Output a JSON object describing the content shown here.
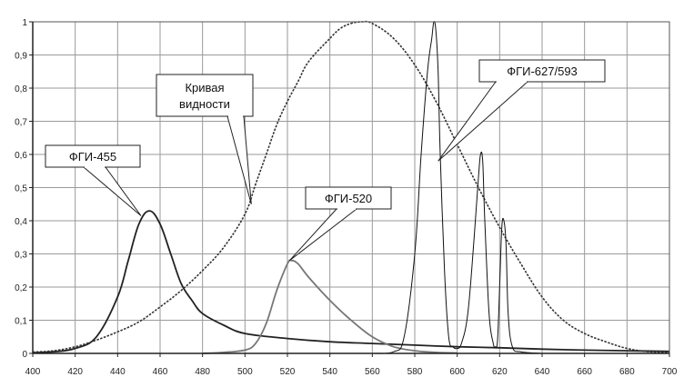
{
  "chart_data": {
    "type": "line",
    "title": "",
    "xlabel": "",
    "ylabel": "",
    "xlim": [
      400,
      700
    ],
    "ylim": [
      0,
      1
    ],
    "grid": true,
    "x_ticks": [
      400,
      420,
      440,
      460,
      480,
      500,
      520,
      540,
      560,
      580,
      600,
      620,
      640,
      660,
      680,
      700
    ],
    "y_ticks": [
      0,
      0.1,
      0.2,
      0.3,
      0.4,
      0.5,
      0.6,
      0.7,
      0.8,
      0.9,
      1
    ],
    "x_tick_labels": [
      "400",
      "420",
      "440",
      "460",
      "480",
      "500",
      "520",
      "540",
      "560",
      "580",
      "600",
      "620",
      "640",
      "660",
      "680",
      "700"
    ],
    "y_tick_labels": [
      "0",
      "0,1",
      "0,2",
      "0,3",
      "0,4",
      "0,5",
      "0,6",
      "0,7",
      "0,8",
      "0,9",
      "1"
    ],
    "series": [
      {
        "key": "fgi455",
        "label": "ФГИ-455",
        "color": "#222222",
        "points": [
          [
            400,
            0.002
          ],
          [
            410,
            0.005
          ],
          [
            420,
            0.015
          ],
          [
            430,
            0.05
          ],
          [
            440,
            0.17
          ],
          [
            445,
            0.28
          ],
          [
            450,
            0.39
          ],
          [
            455,
            0.43
          ],
          [
            460,
            0.39
          ],
          [
            465,
            0.3
          ],
          [
            470,
            0.21
          ],
          [
            475,
            0.16
          ],
          [
            480,
            0.12
          ],
          [
            490,
            0.085
          ],
          [
            500,
            0.06
          ],
          [
            520,
            0.045
          ],
          [
            540,
            0.035
          ],
          [
            560,
            0.03
          ],
          [
            580,
            0.025
          ],
          [
            600,
            0.02
          ],
          [
            620,
            0.017
          ],
          [
            640,
            0.013
          ],
          [
            660,
            0.01
          ],
          [
            680,
            0.008
          ],
          [
            700,
            0.006
          ]
        ]
      },
      {
        "key": "vis",
        "label": "Кривая видности",
        "color": "#333333",
        "dashed": true,
        "points": [
          [
            400,
            0.004
          ],
          [
            410,
            0.008
          ],
          [
            420,
            0.02
          ],
          [
            430,
            0.04
          ],
          [
            440,
            0.065
          ],
          [
            450,
            0.095
          ],
          [
            460,
            0.14
          ],
          [
            470,
            0.19
          ],
          [
            480,
            0.25
          ],
          [
            490,
            0.32
          ],
          [
            500,
            0.42
          ],
          [
            505,
            0.51
          ],
          [
            510,
            0.6
          ],
          [
            515,
            0.69
          ],
          [
            520,
            0.76
          ],
          [
            525,
            0.82
          ],
          [
            530,
            0.88
          ],
          [
            540,
            0.95
          ],
          [
            545,
            0.98
          ],
          [
            550,
            0.995
          ],
          [
            555,
            1.0
          ],
          [
            560,
            0.995
          ],
          [
            570,
            0.95
          ],
          [
            580,
            0.87
          ],
          [
            590,
            0.76
          ],
          [
            600,
            0.63
          ],
          [
            610,
            0.5
          ],
          [
            620,
            0.38
          ],
          [
            630,
            0.27
          ],
          [
            640,
            0.17
          ],
          [
            650,
            0.1
          ],
          [
            660,
            0.06
          ],
          [
            670,
            0.035
          ],
          [
            680,
            0.015
          ],
          [
            690,
            0.005
          ],
          [
            700,
            0.002
          ]
        ]
      },
      {
        "key": "fgi520",
        "label": "ФГИ-520",
        "color": "#777777",
        "points": [
          [
            480,
            0
          ],
          [
            490,
            0.003
          ],
          [
            500,
            0.01
          ],
          [
            505,
            0.03
          ],
          [
            510,
            0.09
          ],
          [
            515,
            0.19
          ],
          [
            520,
            0.27
          ],
          [
            522,
            0.28
          ],
          [
            525,
            0.27
          ],
          [
            530,
            0.23
          ],
          [
            540,
            0.16
          ],
          [
            550,
            0.1
          ],
          [
            560,
            0.05
          ],
          [
            570,
            0.02
          ],
          [
            580,
            0.008
          ],
          [
            590,
            0.003
          ],
          [
            600,
            0.001
          ]
        ]
      },
      {
        "key": "fgi627",
        "label": "ФГИ-627/593",
        "color": "#111111",
        "points": [
          [
            560,
            0
          ],
          [
            570,
            0.005
          ],
          [
            575,
            0.05
          ],
          [
            580,
            0.3
          ],
          [
            583,
            0.6
          ],
          [
            586,
            0.85
          ],
          [
            588,
            0.95
          ],
          [
            589,
            1.0
          ],
          [
            590,
            0.97
          ],
          [
            591,
            0.85
          ],
          [
            592,
            0.6
          ],
          [
            594,
            0.25
          ],
          [
            596,
            0.05
          ],
          [
            598,
            0.02
          ],
          [
            600,
            0.015
          ],
          [
            602,
            0.03
          ],
          [
            605,
            0.12
          ],
          [
            608,
            0.35
          ],
          [
            610,
            0.53
          ],
          [
            611,
            0.6
          ],
          [
            612,
            0.58
          ],
          [
            613,
            0.4
          ],
          [
            615,
            0.12
          ],
          [
            617,
            0.03
          ],
          [
            618,
            0.02
          ],
          [
            619,
            0.04
          ],
          [
            620,
            0.2
          ],
          [
            621,
            0.38
          ],
          [
            622,
            0.4
          ],
          [
            623,
            0.33
          ],
          [
            624,
            0.12
          ],
          [
            626,
            0.02
          ],
          [
            630,
            0.005
          ],
          [
            640,
            0
          ]
        ]
      }
    ],
    "annotations": [
      {
        "key": "fgi455",
        "lines": [
          "ФГИ-455"
        ]
      },
      {
        "key": "vis",
        "lines": [
          "Кривая",
          "видности"
        ]
      },
      {
        "key": "fgi520",
        "lines": [
          "ФГИ-520"
        ]
      },
      {
        "key": "fgi627",
        "lines": [
          "ФГИ-627/593"
        ]
      }
    ]
  }
}
